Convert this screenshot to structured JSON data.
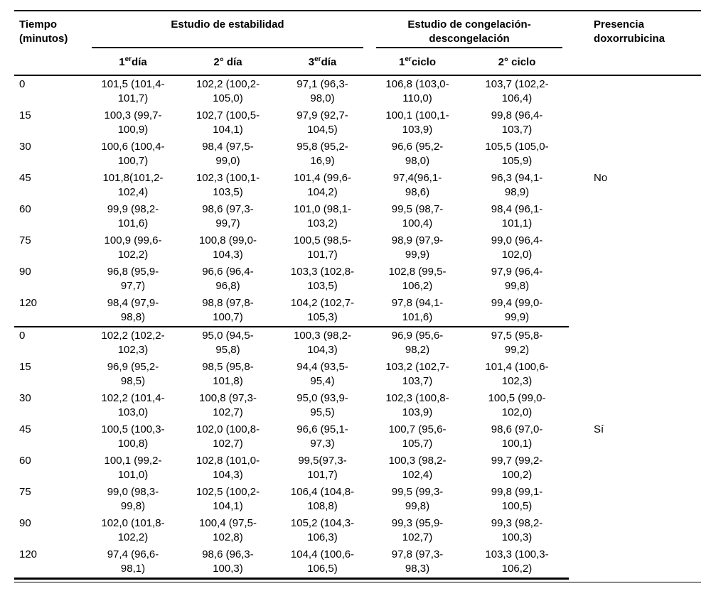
{
  "table": {
    "headers": {
      "tiempo": "Tiempo\n(minutos)",
      "estabilidad": "Estudio de estabilidad",
      "congelacion": "Estudio de congelación-\ndescongelación",
      "presencia": "Presencia\ndoxorrubicina",
      "sub": [
        {
          "num": "1",
          "sup": "er",
          "label": "día"
        },
        {
          "num": "2° día",
          "sup": "",
          "label": ""
        },
        {
          "num": "3",
          "sup": "er",
          "label": "día"
        },
        {
          "num": "1",
          "sup": "er",
          "label": "ciclo"
        },
        {
          "num": "2° ciclo",
          "sup": "",
          "label": ""
        }
      ]
    },
    "blocks": [
      {
        "presencia": "No",
        "rows": [
          {
            "tiempo": "0",
            "cells": [
              "101,5 (101,4-\n101,7)",
              "102,2 (100,2-\n105,0)",
              "97,1 (96,3-\n98,0)",
              "106,8 (103,0-\n110,0)",
              "103,7 (102,2-\n106,4)"
            ]
          },
          {
            "tiempo": "15",
            "cells": [
              "100,3 (99,7-\n100,9)",
              "102,7 (100,5-\n104,1)",
              "97,9 (92,7-\n104,5)",
              "100,1 (100,1-\n103,9)",
              "99,8 (96,4-\n103,7)"
            ]
          },
          {
            "tiempo": "30",
            "cells": [
              "100,6 (100,4-\n100,7)",
              "98,4 (97,5-\n99,0)",
              "95,8 (95,2-\n16,9)",
              "96,6 (95,2-\n98,0)",
              "105,5 (105,0-\n105,9)"
            ]
          },
          {
            "tiempo": "45",
            "cells": [
              "101,8(101,2-\n102,4)",
              "102,3 (100,1-\n103,5)",
              "101,4 (99,6-\n104,2)",
              "97,4(96,1-\n98,6)",
              "96,3 (94,1-\n98,9)"
            ]
          },
          {
            "tiempo": "60",
            "cells": [
              "99,9 (98,2-\n101,6)",
              "98,6 (97,3-\n99,7)",
              "101,0 (98,1-\n103,2)",
              "99,5 (98,7-\n100,4)",
              "98,4 (96,1-\n101,1)"
            ]
          },
          {
            "tiempo": "75",
            "cells": [
              "100,9 (99,6-\n102,2)",
              "100,8 (99,0-\n104,3)",
              "100,5 (98,5-\n101,7)",
              "98,9 (97,9-\n99,9)",
              "99,0 (96,4-\n102,0)"
            ]
          },
          {
            "tiempo": "90",
            "cells": [
              "96,8 (95,9-\n97,7)",
              "96,6 (96,4-\n96,8)",
              "103,3 (102,8-\n103,5)",
              "102,8 (99,5-\n106,2)",
              "97,9 (96,4-\n99,8)"
            ]
          },
          {
            "tiempo": "120",
            "cells": [
              "98,4 (97,9-\n98,8)",
              "98,8 (97,8-\n100,7)",
              "104,2 (102,7-\n105,3)",
              "97,8 (94,1-\n101,6)",
              "99,4 (99,0-\n99,9)"
            ]
          }
        ]
      },
      {
        "presencia": "Sí",
        "rows": [
          {
            "tiempo": "0",
            "cells": [
              "102,2 (102,2-\n102,3)",
              "95,0 (94,5-\n95,8)",
              "100,3 (98,2-\n104,3)",
              "96,9 (95,6-\n98,2)",
              "97,5 (95,8-\n99,2)"
            ]
          },
          {
            "tiempo": "15",
            "cells": [
              "96,9 (95,2-\n98,5)",
              "98,5 (95,8-\n101,8)",
              "94,4 (93,5-\n95,4)",
              "103,2 (102,7-\n103,7)",
              "101,4 (100,6-\n102,3)"
            ]
          },
          {
            "tiempo": "30",
            "cells": [
              "102,2 (101,4-\n103,0)",
              "100,8 (97,3-\n102,7)",
              "95,0 (93,9-\n95,5)",
              "102,3 (100,8-\n103,9)",
              "100,5 (99,0-\n102,0)"
            ]
          },
          {
            "tiempo": "45",
            "cells": [
              "100,5 (100,3-\n100,8)",
              "102,0 (100,8-\n102,7)",
              "96,6 (95,1-\n97,3)",
              "100,7 (95,6-\n105,7)",
              "98,6 (97,0-\n100,1)"
            ]
          },
          {
            "tiempo": "60",
            "cells": [
              "100,1 (99,2-\n101,0)",
              "102,8 (101,0-\n104,3)",
              "99,5(97,3-\n101,7)",
              "100,3 (98,2-\n102,4)",
              "99,7 (99,2-\n100,2)"
            ]
          },
          {
            "tiempo": "75",
            "cells": [
              "99,0 (98,3-\n99,8)",
              "102,5 (100,2-\n104,1)",
              "106,4 (104,8-\n108,8)",
              "99,5 (99,3-\n99,8)",
              "99,8 (99,1-\n100,5)"
            ]
          },
          {
            "tiempo": "90",
            "cells": [
              "102,0 (101,8-\n102,2)",
              "100,4 (97,5-\n102,8)",
              "105,2 (104,3-\n106,3)",
              "99,3 (95,9-\n102,7)",
              "99,3 (98,2-\n100,3)"
            ]
          },
          {
            "tiempo": "120",
            "cells": [
              "97,4 (96,6-\n98,1)",
              "98,6 (96,3-\n100,3)",
              "104,4 (100,6-\n106,5)",
              "97,8 (97,3-\n98,3)",
              "103,3 (100,3-\n106,2)"
            ]
          }
        ]
      }
    ]
  }
}
